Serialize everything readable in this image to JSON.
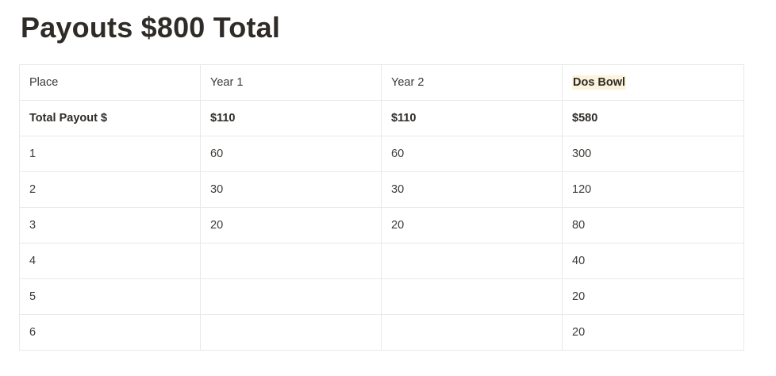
{
  "page": {
    "title": "Payouts $800 Total"
  },
  "table": {
    "headers": [
      "Place",
      "Year 1",
      "Year 2",
      "Dos Bowl"
    ],
    "highlighted_header_color": "#fbf3db",
    "total_row": [
      "Total Payout $",
      "$110",
      "$110",
      "$580"
    ],
    "rows": [
      [
        "1",
        "60",
        "60",
        "300"
      ],
      [
        "2",
        "30",
        "30",
        "120"
      ],
      [
        "3",
        "20",
        "20",
        "80"
      ],
      [
        "4",
        "",
        "",
        "40"
      ],
      [
        "5",
        "",
        "",
        "20"
      ],
      [
        "6",
        "",
        "",
        "20"
      ]
    ]
  }
}
